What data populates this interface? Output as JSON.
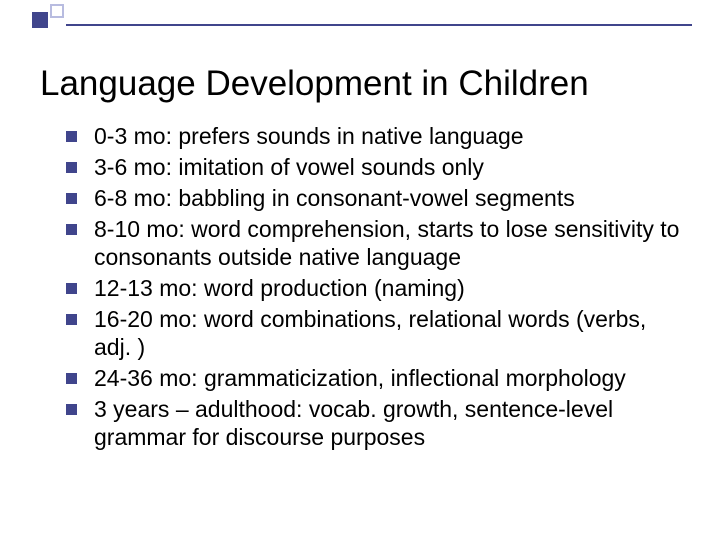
{
  "decor": {
    "square_fill": "#40458c",
    "square_outline": "#b8bce0",
    "rule_color": "#40458c"
  },
  "title": "Language Development in Children",
  "title_fontsize": 35,
  "body_fontsize": 23,
  "bullet_color": "#40458c",
  "text_color": "#000000",
  "background_color": "#ffffff",
  "bullets": [
    "0-3 mo: prefers sounds in native language",
    "3-6 mo: imitation of vowel sounds only",
    "6-8 mo: babbling in consonant-vowel segments",
    "8-10 mo: word comprehension, starts to lose sensitivity to consonants outside native language",
    "12-13 mo: word production (naming)",
    "16-20 mo: word combinations, relational words (verbs, adj. )",
    "24-36 mo: grammaticization, inflectional morphology",
    "3 years – adulthood: vocab. growth, sentence-level grammar for discourse purposes"
  ]
}
